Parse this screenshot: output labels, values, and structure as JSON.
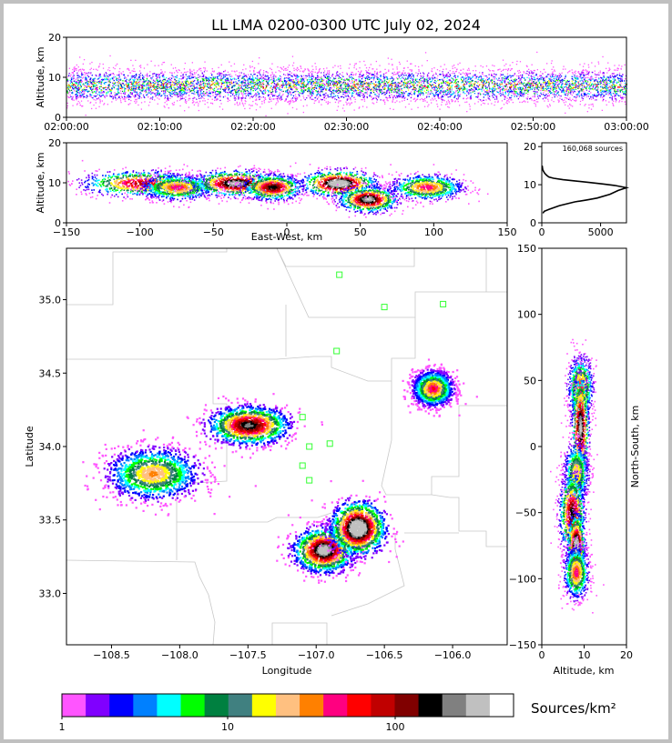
{
  "title": "LL LMA 0200-0300 UTC July 02, 2024",
  "panels": {
    "time_alt": {
      "ylabel": "Altitude, km",
      "xticks": [
        "02:00:00",
        "02:10:00",
        "02:20:00",
        "02:30:00",
        "02:40:00",
        "02:50:00",
        "03:00:00"
      ],
      "yticks": [
        "0",
        "10",
        "20"
      ]
    },
    "ew_alt": {
      "xlabel": "East-West, km",
      "ylabel": "Altitude, km",
      "xticks": [
        "−150",
        "−100",
        "−50",
        "0",
        "50",
        "100",
        "150"
      ],
      "yticks": [
        "0",
        "10",
        "20"
      ]
    },
    "hist": {
      "annotation": "160,068 sources",
      "xticks": [
        "0",
        "5000"
      ],
      "yticks": [
        "0",
        "10",
        "20"
      ]
    },
    "map": {
      "xlabel": "Longitude",
      "ylabel": "Latitude",
      "xticks": [
        "−108.5",
        "−108.0",
        "−107.5",
        "−107.0",
        "−106.5",
        "−106.0"
      ],
      "yticks": [
        "33.0",
        "33.5",
        "34.0",
        "34.5",
        "35.0"
      ]
    },
    "alt_ns": {
      "xlabel": "Altitude, km",
      "ylabel": "North-South, km",
      "xticks": [
        "0",
        "10",
        "20"
      ],
      "yticks": [
        "150",
        "100",
        "50",
        "0",
        "−50",
        "−100",
        "−150"
      ]
    }
  },
  "colorbar": {
    "label": "Sources/km²",
    "ticks": [
      "1",
      "10",
      "100"
    ],
    "colors": [
      "#ff55ff",
      "#8000ff",
      "#0000ff",
      "#0080ff",
      "#00ffff",
      "#00ff00",
      "#008040",
      "#408080",
      "#ffff00",
      "#ffc080",
      "#ff8000",
      "#ff0080",
      "#ff0000",
      "#c00000",
      "#800000",
      "#000000",
      "#808080",
      "#c0c0c0",
      "#ffffff"
    ]
  },
  "chart_data": [
    {
      "type": "heatmap",
      "panel": "time_alt",
      "ylabel": "Altitude, km",
      "x_range": [
        "02:00:00",
        "03:00:00"
      ],
      "ylim": [
        0,
        20
      ],
      "peak_altitude_km": 8
    },
    {
      "type": "heatmap",
      "panel": "ew_alt",
      "xlabel": "East-West, km",
      "ylabel": "Altitude, km",
      "xlim": [
        -150,
        150
      ],
      "ylim": [
        0,
        20
      ],
      "clusters": [
        {
          "x": -100,
          "z": 10,
          "width": 40,
          "weight": 0.7
        },
        {
          "x": -75,
          "z": 9,
          "width": 25,
          "weight": 0.6
        },
        {
          "x": -35,
          "z": 10,
          "width": 30,
          "weight": 0.9
        },
        {
          "x": -10,
          "z": 9,
          "width": 20,
          "weight": 0.8
        },
        {
          "x": 35,
          "z": 10,
          "width": 25,
          "weight": 1.0
        },
        {
          "x": 55,
          "z": 6,
          "width": 20,
          "weight": 0.9
        },
        {
          "x": 95,
          "z": 9,
          "width": 25,
          "weight": 0.6
        }
      ]
    },
    {
      "type": "line",
      "panel": "hist",
      "annotation": "160,068 sources",
      "xlim": [
        0,
        7200
      ],
      "ylim": [
        0,
        21
      ],
      "x": [
        100,
        200,
        600,
        1500,
        2800,
        3800,
        4700,
        5800,
        6500,
        7200,
        6200,
        5200,
        4000,
        2800,
        1800,
        1000,
        600,
        400,
        250,
        150,
        80,
        30
      ],
      "y": [
        2.5,
        3,
        3.5,
        4.5,
        5.5,
        6,
        6.5,
        7.5,
        8.5,
        9.2,
        9.8,
        10.2,
        10.6,
        11,
        11.3,
        11.7,
        12,
        12.5,
        13,
        13.5,
        14,
        15
      ]
    },
    {
      "type": "heatmap",
      "panel": "map",
      "xlabel": "Longitude",
      "ylabel": "Latitude",
      "xlim": [
        -108.83,
        -105.6
      ],
      "ylim": [
        32.65,
        35.35
      ],
      "clusters": [
        {
          "lon": -108.2,
          "lat": 33.82,
          "w": 0.35,
          "h": 0.18,
          "weight": 0.5
        },
        {
          "lon": -107.5,
          "lat": 34.15,
          "w": 0.3,
          "h": 0.13,
          "weight": 0.8
        },
        {
          "lon": -106.95,
          "lat": 33.3,
          "w": 0.22,
          "h": 0.15,
          "weight": 0.9
        },
        {
          "lon": -106.7,
          "lat": 33.45,
          "w": 0.2,
          "h": 0.18,
          "weight": 1.0
        },
        {
          "lon": -106.15,
          "lat": 34.4,
          "w": 0.15,
          "h": 0.12,
          "weight": 0.6
        }
      ],
      "stations": [
        {
          "lon": -106.83,
          "lat": 35.17
        },
        {
          "lon": -106.5,
          "lat": 34.95
        },
        {
          "lon": -106.07,
          "lat": 34.97
        },
        {
          "lon": -106.85,
          "lat": 34.65
        },
        {
          "lon": -107.1,
          "lat": 34.2
        },
        {
          "lon": -107.05,
          "lat": 34.0
        },
        {
          "lon": -106.9,
          "lat": 34.02
        },
        {
          "lon": -107.1,
          "lat": 33.87
        },
        {
          "lon": -107.05,
          "lat": 33.77
        }
      ]
    },
    {
      "type": "heatmap",
      "panel": "alt_ns",
      "xlabel": "Altitude, km",
      "ylabel": "North-South, km",
      "xlim": [
        0,
        20
      ],
      "ylim": [
        -150,
        150
      ],
      "clusters": [
        {
          "z": 9,
          "y": 45,
          "dz": 3,
          "dy": 12,
          "weight": 0.6
        },
        {
          "z": 9,
          "y": 15,
          "dz": 2,
          "dy": 20,
          "weight": 0.9
        },
        {
          "z": 8,
          "y": -20,
          "dz": 3,
          "dy": 12,
          "weight": 0.5
        },
        {
          "z": 7,
          "y": -50,
          "dz": 3,
          "dy": 15,
          "weight": 0.8
        },
        {
          "z": 8,
          "y": -75,
          "dz": 2,
          "dy": 12,
          "weight": 1.0
        },
        {
          "z": 8,
          "y": -95,
          "dz": 3,
          "dy": 10,
          "weight": 0.6
        }
      ]
    }
  ]
}
